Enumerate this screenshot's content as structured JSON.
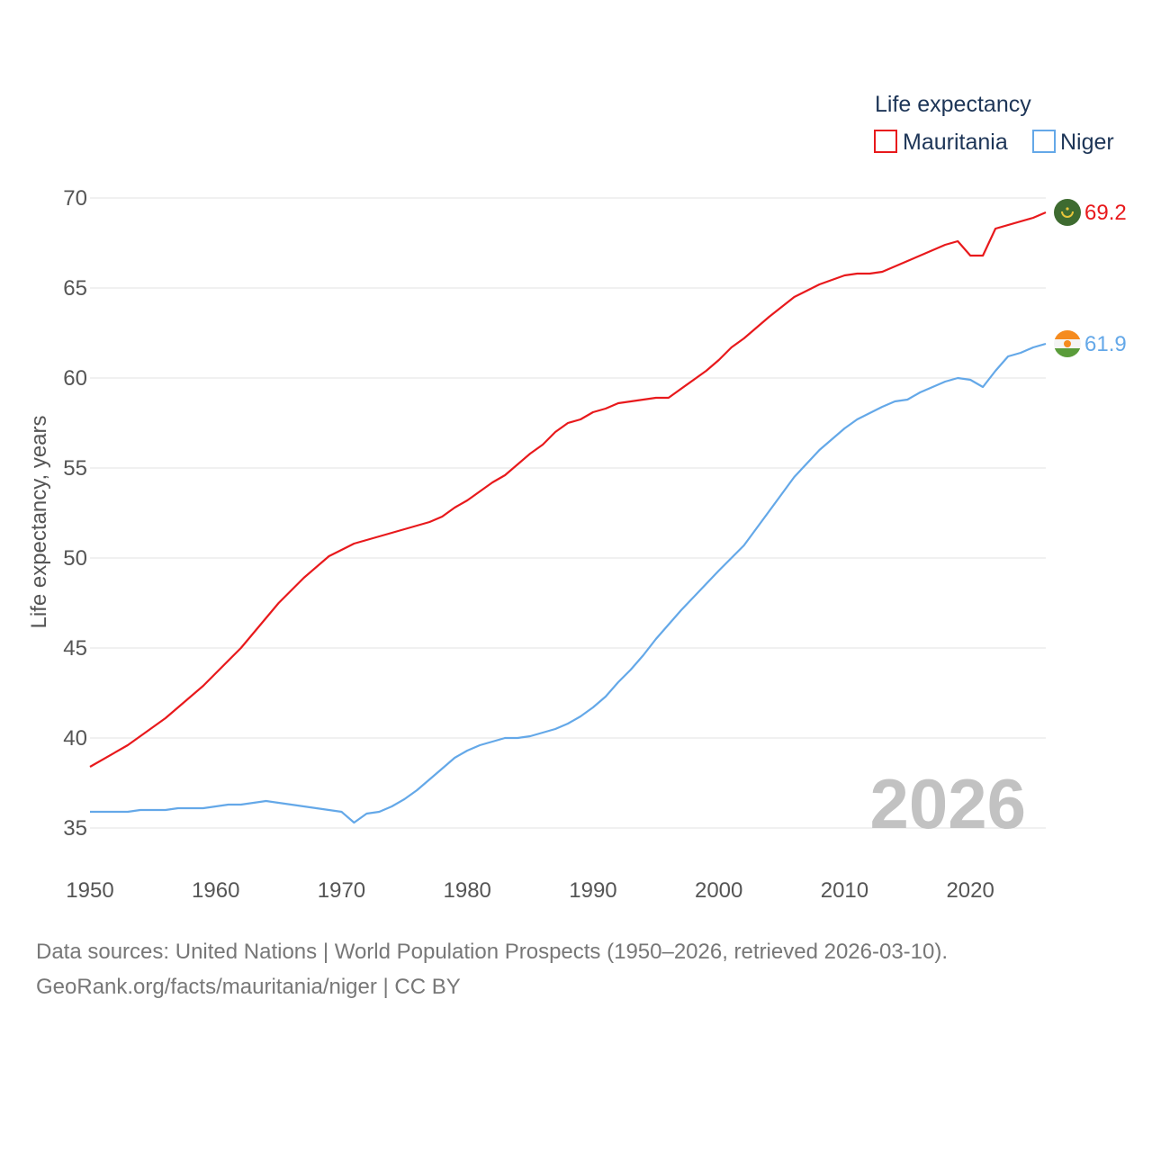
{
  "chart_data": {
    "type": "line",
    "legend_title": "Life expectancy",
    "ylabel": "Life expectancy, years",
    "xlim": [
      1950,
      2026
    ],
    "ylim": [
      33,
      71
    ],
    "yticks": [
      35,
      40,
      45,
      50,
      55,
      60,
      65,
      70
    ],
    "xticks": [
      1950,
      1960,
      1970,
      1980,
      1990,
      2000,
      2010,
      2020
    ],
    "year_label": "2026",
    "legend_position": "top-right",
    "series": [
      {
        "name": "Mauritania",
        "color": "#e8191c",
        "end_label": "69.2",
        "flag": "mauritania-flag-icon",
        "points": [
          [
            1950,
            38.4
          ],
          [
            1953,
            39.6
          ],
          [
            1956,
            41.1
          ],
          [
            1959,
            42.9
          ],
          [
            1962,
            45.0
          ],
          [
            1965,
            47.5
          ],
          [
            1967,
            48.9
          ],
          [
            1969,
            50.1
          ],
          [
            1971,
            50.8
          ],
          [
            1974,
            51.4
          ],
          [
            1977,
            52.0
          ],
          [
            1978,
            52.3
          ],
          [
            1979,
            52.8
          ],
          [
            1980,
            53.2
          ],
          [
            1982,
            54.2
          ],
          [
            1983,
            54.6
          ],
          [
            1985,
            55.8
          ],
          [
            1986,
            56.3
          ],
          [
            1987,
            57.0
          ],
          [
            1988,
            57.5
          ],
          [
            1989,
            57.7
          ],
          [
            1990,
            58.1
          ],
          [
            1991,
            58.3
          ],
          [
            1992,
            58.6
          ],
          [
            1995,
            58.9
          ],
          [
            1996,
            58.9
          ],
          [
            1999,
            60.4
          ],
          [
            2000,
            61.0
          ],
          [
            2001,
            61.7
          ],
          [
            2002,
            62.2
          ],
          [
            2004,
            63.4
          ],
          [
            2006,
            64.5
          ],
          [
            2008,
            65.2
          ],
          [
            2010,
            65.7
          ],
          [
            2011,
            65.8
          ],
          [
            2012,
            65.8
          ],
          [
            2013,
            65.9
          ],
          [
            2016,
            66.8
          ],
          [
            2018,
            67.4
          ],
          [
            2019,
            67.6
          ],
          [
            2020,
            66.8
          ],
          [
            2021,
            66.8
          ],
          [
            2022,
            68.3
          ],
          [
            2025,
            68.9
          ],
          [
            2026,
            69.2
          ]
        ]
      },
      {
        "name": "Niger",
        "color": "#64a8e8",
        "end_label": "61.9",
        "flag": "niger-flag-icon",
        "points": [
          [
            1950,
            35.9
          ],
          [
            1953,
            35.9
          ],
          [
            1954,
            36.0
          ],
          [
            1956,
            36.0
          ],
          [
            1957,
            36.1
          ],
          [
            1959,
            36.1
          ],
          [
            1961,
            36.3
          ],
          [
            1962,
            36.3
          ],
          [
            1964,
            36.5
          ],
          [
            1966,
            36.3
          ],
          [
            1968,
            36.1
          ],
          [
            1970,
            35.9
          ],
          [
            1971,
            35.3
          ],
          [
            1972,
            35.8
          ],
          [
            1973,
            35.9
          ],
          [
            1974,
            36.2
          ],
          [
            1975,
            36.6
          ],
          [
            1976,
            37.1
          ],
          [
            1977,
            37.7
          ],
          [
            1978,
            38.3
          ],
          [
            1979,
            38.9
          ],
          [
            1980,
            39.3
          ],
          [
            1981,
            39.6
          ],
          [
            1983,
            40.0
          ],
          [
            1984,
            40.0
          ],
          [
            1985,
            40.1
          ],
          [
            1987,
            40.5
          ],
          [
            1988,
            40.8
          ],
          [
            1989,
            41.2
          ],
          [
            1990,
            41.7
          ],
          [
            1991,
            42.3
          ],
          [
            1992,
            43.1
          ],
          [
            1993,
            43.8
          ],
          [
            1994,
            44.6
          ],
          [
            1995,
            45.5
          ],
          [
            1997,
            47.1
          ],
          [
            2000,
            49.3
          ],
          [
            2002,
            50.7
          ],
          [
            2004,
            52.6
          ],
          [
            2006,
            54.5
          ],
          [
            2008,
            56.0
          ],
          [
            2010,
            57.2
          ],
          [
            2011,
            57.7
          ],
          [
            2013,
            58.4
          ],
          [
            2014,
            58.7
          ],
          [
            2015,
            58.8
          ],
          [
            2016,
            59.2
          ],
          [
            2018,
            59.8
          ],
          [
            2019,
            60.0
          ],
          [
            2020,
            59.9
          ],
          [
            2021,
            59.5
          ],
          [
            2022,
            60.4
          ],
          [
            2023,
            61.2
          ],
          [
            2024,
            61.4
          ],
          [
            2025,
            61.7
          ],
          [
            2026,
            61.9
          ]
        ]
      }
    ]
  },
  "footer": {
    "source_line1": "Data sources: United Nations | World Population Prospects (1950–2026, retrieved 2026-03-10).",
    "source_line2": "GeoRank.org/facts/mauritania/niger | CC BY"
  }
}
